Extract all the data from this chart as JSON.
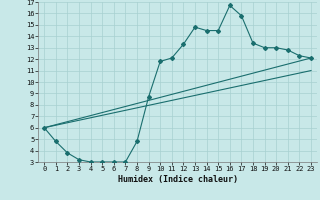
{
  "xlabel": "Humidex (Indice chaleur)",
  "bg_color": "#c8e8e8",
  "grid_color": "#a8d0d0",
  "line_color": "#1a6e6e",
  "xlim": [
    -0.5,
    23.5
  ],
  "ylim": [
    3,
    17
  ],
  "xticks": [
    0,
    1,
    2,
    3,
    4,
    5,
    6,
    7,
    8,
    9,
    10,
    11,
    12,
    13,
    14,
    15,
    16,
    17,
    18,
    19,
    20,
    21,
    22,
    23
  ],
  "yticks": [
    3,
    4,
    5,
    6,
    7,
    8,
    9,
    10,
    11,
    12,
    13,
    14,
    15,
    16,
    17
  ],
  "line1_x": [
    0,
    1,
    2,
    3,
    4,
    5,
    6,
    7,
    8,
    9,
    10,
    11,
    12,
    13,
    14,
    15,
    16,
    17,
    18,
    19,
    20,
    21,
    22,
    23
  ],
  "line1_y": [
    6.0,
    4.8,
    3.8,
    3.2,
    3.0,
    3.0,
    3.0,
    3.0,
    4.8,
    8.7,
    11.8,
    12.1,
    13.3,
    14.8,
    14.5,
    14.5,
    16.7,
    15.8,
    13.4,
    13.0,
    13.0,
    12.8,
    12.3,
    12.1
  ],
  "line2_x": [
    0,
    23
  ],
  "line2_y": [
    6.0,
    12.1
  ],
  "line3_x": [
    0,
    23
  ],
  "line3_y": [
    6.0,
    11.0
  ]
}
